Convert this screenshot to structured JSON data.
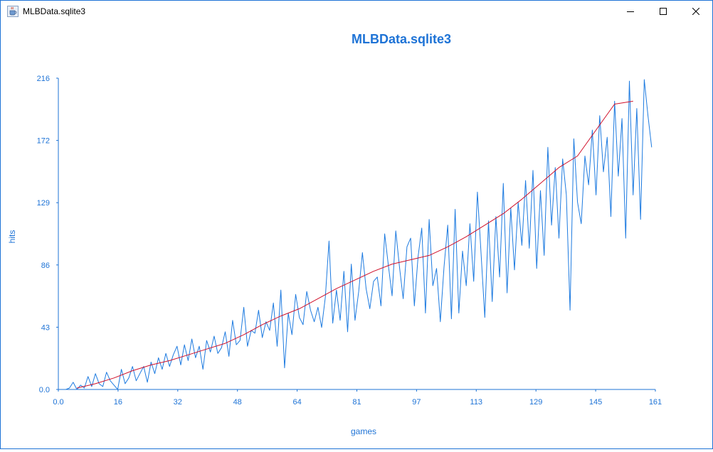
{
  "window": {
    "title": "MLBData.sqlite3",
    "icon": "java-cup-icon"
  },
  "chart_data": {
    "type": "line",
    "title": "MLBData.sqlite3",
    "xlabel": "games",
    "ylabel": "hits",
    "xlim": [
      0,
      161
    ],
    "ylim": [
      0,
      216
    ],
    "xticks": [
      "0.0",
      "16",
      "32",
      "48",
      "64",
      "81",
      "97",
      "113",
      "129",
      "145",
      "161"
    ],
    "yticks": [
      "0.0",
      "43",
      "86",
      "129",
      "172",
      "216"
    ],
    "grid": false,
    "colors": {
      "title": "#1e73d6",
      "axis": "#1e73d6",
      "series_raw": "#1e7be0",
      "series_trend": "#d0102a"
    },
    "series": [
      {
        "values": [
          [
            2,
            0
          ],
          [
            3,
            1
          ],
          [
            4,
            5
          ],
          [
            5,
            0
          ],
          [
            6,
            3
          ],
          [
            7,
            1
          ],
          [
            8,
            9
          ],
          [
            9,
            2
          ],
          [
            10,
            11
          ],
          [
            11,
            4
          ],
          [
            12,
            2
          ],
          [
            13,
            12
          ],
          [
            14,
            6
          ],
          [
            15,
            3
          ],
          [
            16,
            0
          ],
          [
            17,
            14
          ],
          [
            18,
            4
          ],
          [
            19,
            8
          ],
          [
            20,
            16
          ],
          [
            21,
            6
          ],
          [
            22,
            11
          ],
          [
            23,
            16
          ],
          [
            24,
            5
          ],
          [
            25,
            19
          ],
          [
            26,
            11
          ],
          [
            27,
            22
          ],
          [
            28,
            14
          ],
          [
            29,
            25
          ],
          [
            30,
            16
          ],
          [
            31,
            24
          ],
          [
            32,
            30
          ],
          [
            33,
            17
          ],
          [
            34,
            31
          ],
          [
            35,
            20
          ],
          [
            36,
            35
          ],
          [
            37,
            22
          ],
          [
            38,
            30
          ],
          [
            39,
            14
          ],
          [
            40,
            34
          ],
          [
            41,
            26
          ],
          [
            42,
            37
          ],
          [
            43,
            25
          ],
          [
            44,
            29
          ],
          [
            45,
            40
          ],
          [
            46,
            23
          ],
          [
            47,
            48
          ],
          [
            48,
            31
          ],
          [
            49,
            34
          ],
          [
            50,
            57
          ],
          [
            51,
            30
          ],
          [
            52,
            41
          ],
          [
            53,
            39
          ],
          [
            54,
            55
          ],
          [
            55,
            36
          ],
          [
            56,
            47
          ],
          [
            57,
            41
          ],
          [
            58,
            60
          ],
          [
            59,
            30
          ],
          [
            60,
            69
          ],
          [
            61,
            15
          ],
          [
            62,
            53
          ],
          [
            63,
            38
          ],
          [
            64,
            66
          ],
          [
            65,
            50
          ],
          [
            66,
            45
          ],
          [
            67,
            68
          ],
          [
            68,
            55
          ],
          [
            69,
            47
          ],
          [
            70,
            57
          ],
          [
            71,
            43
          ],
          [
            72,
            64
          ],
          [
            73,
            103
          ],
          [
            74,
            46
          ],
          [
            75,
            69
          ],
          [
            76,
            48
          ],
          [
            77,
            82
          ],
          [
            78,
            40
          ],
          [
            79,
            87
          ],
          [
            80,
            48
          ],
          [
            81,
            68
          ],
          [
            82,
            95
          ],
          [
            83,
            70
          ],
          [
            84,
            56
          ],
          [
            85,
            75
          ],
          [
            86,
            78
          ],
          [
            87,
            58
          ],
          [
            88,
            108
          ],
          [
            89,
            86
          ],
          [
            90,
            65
          ],
          [
            91,
            110
          ],
          [
            92,
            85
          ],
          [
            93,
            63
          ],
          [
            94,
            99
          ],
          [
            95,
            105
          ],
          [
            96,
            58
          ],
          [
            97,
            92
          ],
          [
            98,
            112
          ],
          [
            99,
            53
          ],
          [
            100,
            118
          ],
          [
            101,
            72
          ],
          [
            102,
            84
          ],
          [
            103,
            47
          ],
          [
            104,
            85
          ],
          [
            105,
            114
          ],
          [
            106,
            49
          ],
          [
            107,
            125
          ],
          [
            108,
            53
          ],
          [
            109,
            96
          ],
          [
            110,
            72
          ],
          [
            111,
            115
          ],
          [
            112,
            75
          ],
          [
            113,
            137
          ],
          [
            114,
            94
          ],
          [
            115,
            50
          ],
          [
            116,
            117
          ],
          [
            117,
            61
          ],
          [
            118,
            120
          ],
          [
            119,
            78
          ],
          [
            120,
            143
          ],
          [
            121,
            67
          ],
          [
            122,
            126
          ],
          [
            123,
            83
          ],
          [
            124,
            130
          ],
          [
            125,
            100
          ],
          [
            126,
            145
          ],
          [
            127,
            98
          ],
          [
            128,
            152
          ],
          [
            129,
            84
          ],
          [
            130,
            138
          ],
          [
            131,
            93
          ],
          [
            132,
            168
          ],
          [
            133,
            114
          ],
          [
            134,
            154
          ],
          [
            135,
            105
          ],
          [
            136,
            160
          ],
          [
            137,
            135
          ],
          [
            138,
            55
          ],
          [
            139,
            174
          ],
          [
            140,
            130
          ],
          [
            141,
            115
          ],
          [
            142,
            162
          ],
          [
            143,
            142
          ],
          [
            144,
            180
          ],
          [
            145,
            135
          ],
          [
            146,
            190
          ],
          [
            147,
            151
          ],
          [
            148,
            175
          ],
          [
            149,
            120
          ],
          [
            150,
            200
          ],
          [
            151,
            148
          ],
          [
            152,
            188
          ],
          [
            153,
            105
          ],
          [
            154,
            214
          ],
          [
            155,
            135
          ],
          [
            156,
            195
          ],
          [
            157,
            118
          ],
          [
            158,
            215
          ],
          [
            159,
            190
          ],
          [
            160,
            168
          ]
        ]
      },
      {
        "values": [
          [
            5,
            1
          ],
          [
            10,
            4
          ],
          [
            15,
            8
          ],
          [
            20,
            13
          ],
          [
            25,
            17
          ],
          [
            30,
            20
          ],
          [
            35,
            24
          ],
          [
            40,
            28
          ],
          [
            45,
            32
          ],
          [
            50,
            38
          ],
          [
            55,
            45
          ],
          [
            60,
            51
          ],
          [
            65,
            56
          ],
          [
            70,
            63
          ],
          [
            75,
            70
          ],
          [
            80,
            76
          ],
          [
            85,
            82
          ],
          [
            90,
            87
          ],
          [
            95,
            90
          ],
          [
            100,
            93
          ],
          [
            105,
            99
          ],
          [
            110,
            106
          ],
          [
            115,
            114
          ],
          [
            120,
            122
          ],
          [
            125,
            132
          ],
          [
            130,
            143
          ],
          [
            135,
            154
          ],
          [
            140,
            162
          ],
          [
            145,
            180
          ],
          [
            150,
            198
          ],
          [
            155,
            200
          ]
        ]
      }
    ]
  }
}
